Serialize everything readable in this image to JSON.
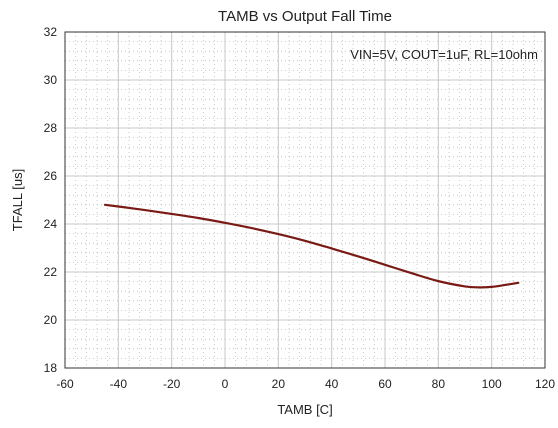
{
  "chart_data": {
    "type": "line",
    "title": "TAMB vs Output Fall Time",
    "xlabel": "TAMB [C]",
    "ylabel": "TFALL [us]",
    "xlim": [
      -60,
      120
    ],
    "ylim": [
      18,
      32
    ],
    "xticks": [
      -60,
      -40,
      -20,
      0,
      20,
      40,
      60,
      80,
      100,
      120
    ],
    "yticks": [
      18,
      20,
      22,
      24,
      26,
      28,
      30,
      32
    ],
    "grid": true,
    "minor_grid": true,
    "annotation": "VIN=5V, COUT=1uF, RL=10ohm",
    "series": [
      {
        "color": "#7a1a14",
        "x": [
          -45,
          -40,
          -30,
          -20,
          -10,
          0,
          10,
          20,
          30,
          40,
          50,
          60,
          70,
          80,
          90,
          95,
          100,
          105,
          110
        ],
        "y": [
          24.8,
          24.73,
          24.58,
          24.42,
          24.25,
          24.05,
          23.83,
          23.58,
          23.3,
          22.98,
          22.65,
          22.3,
          21.95,
          21.62,
          21.4,
          21.36,
          21.38,
          21.46,
          21.55
        ]
      }
    ]
  }
}
